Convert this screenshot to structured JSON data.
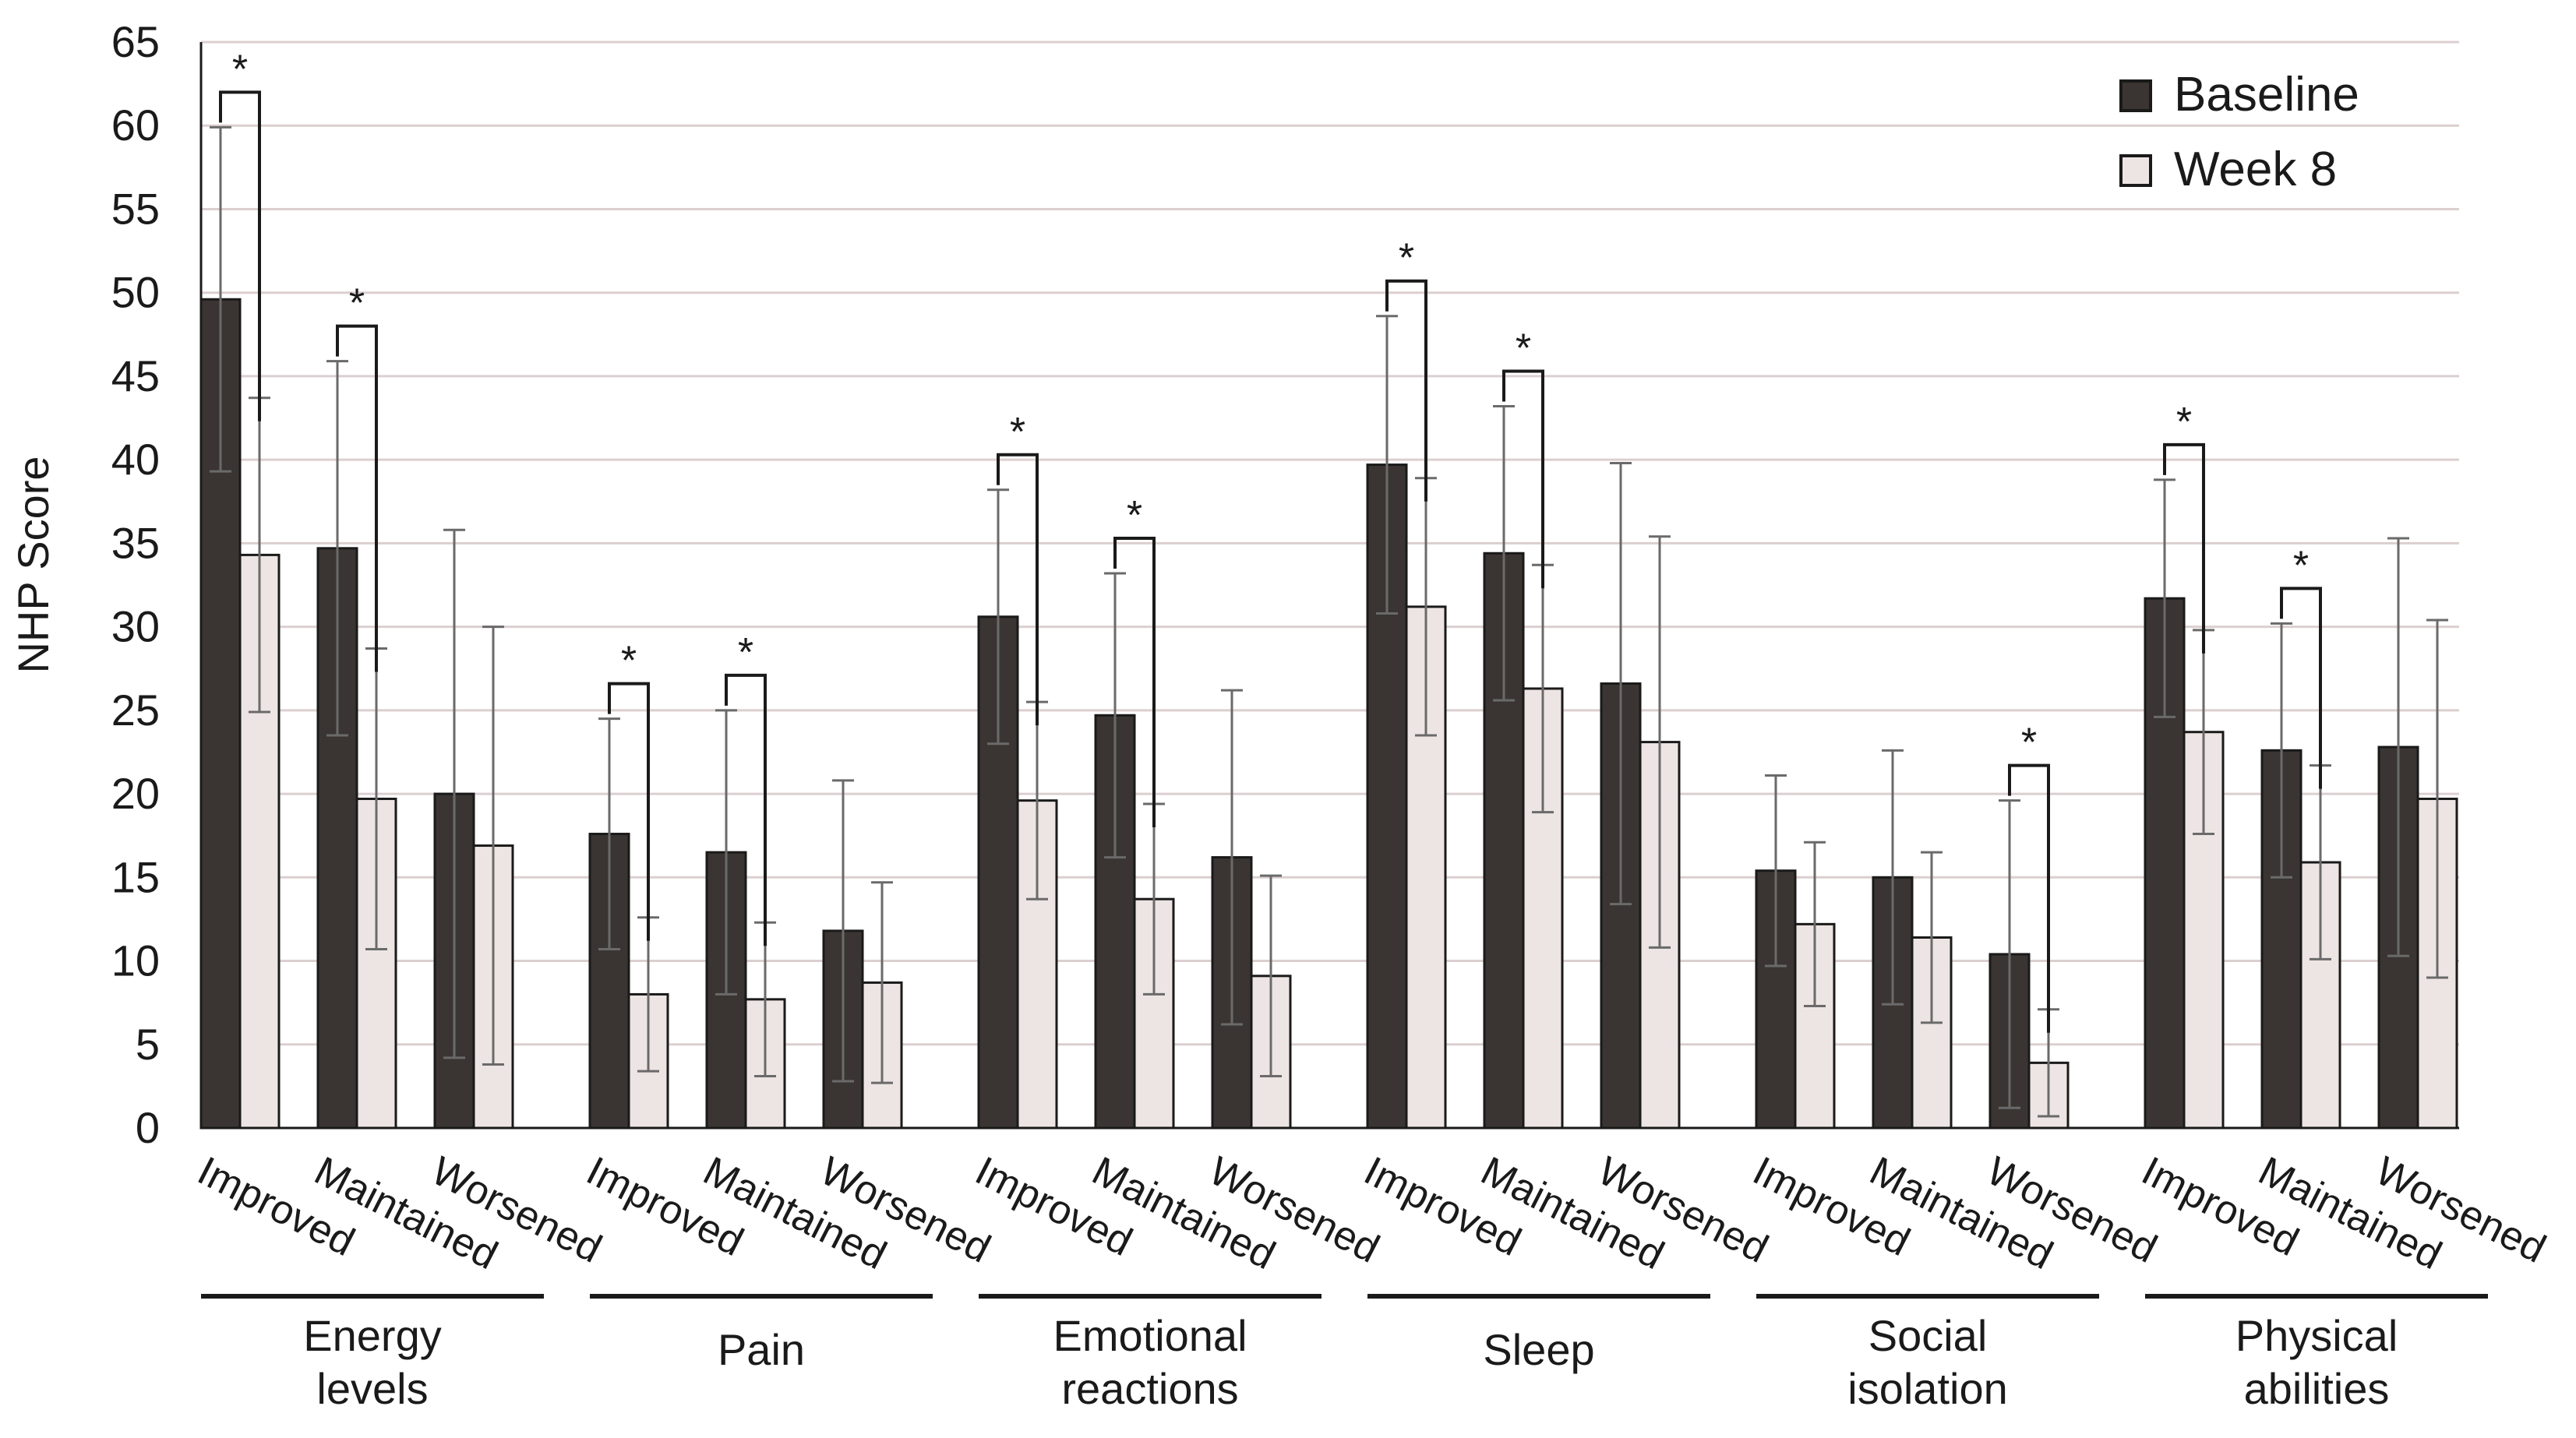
{
  "chart_data": {
    "type": "bar",
    "title": "",
    "xlabel": "",
    "ylabel": "NHP Score",
    "ylim": [
      0,
      65
    ],
    "ytick_step": 5,
    "grid": true,
    "legend_position": "top-right",
    "colors": {
      "Baseline": "#3a3532",
      "Week 8": "#ede5e3",
      "grid": "#dccfd0",
      "error": "#6a6a6a",
      "axis": "#1a1a1a"
    },
    "series": [
      {
        "name": "Baseline"
      },
      {
        "name": "Week 8"
      }
    ],
    "groups": [
      {
        "name": "Energy levels",
        "label_lines": [
          "Energy",
          "levels"
        ],
        "categories": [
          {
            "name": "Improved",
            "baseline": 49.6,
            "baseline_err": 10.3,
            "week8": 34.3,
            "week8_err": 9.4,
            "significant": true
          },
          {
            "name": "Maintained",
            "baseline": 34.7,
            "baseline_err": 11.2,
            "week8": 19.7,
            "week8_err": 9.0,
            "significant": true
          },
          {
            "name": "Worsened",
            "baseline": 20.0,
            "baseline_err": 15.8,
            "week8": 16.9,
            "week8_err": 13.1,
            "significant": false
          }
        ]
      },
      {
        "name": "Pain",
        "label_lines": [
          "Pain"
        ],
        "categories": [
          {
            "name": "Improved",
            "baseline": 17.6,
            "baseline_err": 6.9,
            "week8": 8.0,
            "week8_err": 4.6,
            "significant": true
          },
          {
            "name": "Maintained",
            "baseline": 16.5,
            "baseline_err": 8.5,
            "week8": 7.7,
            "week8_err": 4.6,
            "significant": true
          },
          {
            "name": "Worsened",
            "baseline": 11.8,
            "baseline_err": 9.0,
            "week8": 8.7,
            "week8_err": 6.0,
            "significant": false
          }
        ]
      },
      {
        "name": "Emotional reactions",
        "label_lines": [
          "Emotional",
          "reactions"
        ],
        "categories": [
          {
            "name": "Improved",
            "baseline": 30.6,
            "baseline_err": 7.6,
            "week8": 19.6,
            "week8_err": 5.9,
            "significant": true
          },
          {
            "name": "Maintained",
            "baseline": 24.7,
            "baseline_err": 8.5,
            "week8": 13.7,
            "week8_err": 5.7,
            "significant": true
          },
          {
            "name": "Worsened",
            "baseline": 16.2,
            "baseline_err": 10.0,
            "week8": 9.1,
            "week8_err": 6.0,
            "significant": false
          }
        ]
      },
      {
        "name": "Sleep",
        "label_lines": [
          "Sleep"
        ],
        "categories": [
          {
            "name": "Improved",
            "baseline": 39.7,
            "baseline_err": 8.9,
            "week8": 31.2,
            "week8_err": 7.7,
            "significant": true
          },
          {
            "name": "Maintained",
            "baseline": 34.4,
            "baseline_err": 8.8,
            "week8": 26.3,
            "week8_err": 7.4,
            "significant": true
          },
          {
            "name": "Worsened",
            "baseline": 26.6,
            "baseline_err": 13.2,
            "week8": 23.1,
            "week8_err": 12.3,
            "significant": false
          }
        ]
      },
      {
        "name": "Social isolation",
        "label_lines": [
          "Social",
          "isolation"
        ],
        "categories": [
          {
            "name": "Improved",
            "baseline": 15.4,
            "baseline_err": 5.7,
            "week8": 12.2,
            "week8_err": 4.9,
            "significant": false
          },
          {
            "name": "Maintained",
            "baseline": 15.0,
            "baseline_err": 7.6,
            "week8": 11.4,
            "week8_err": 5.1,
            "significant": false
          },
          {
            "name": "Worsened",
            "baseline": 10.4,
            "baseline_err": 9.2,
            "week8": 3.9,
            "week8_err": 3.2,
            "significant": true
          }
        ]
      },
      {
        "name": "Physical abilities",
        "label_lines": [
          "Physical",
          "abilities"
        ],
        "categories": [
          {
            "name": "Improved",
            "baseline": 31.7,
            "baseline_err": 7.1,
            "week8": 23.7,
            "week8_err": 6.1,
            "significant": true
          },
          {
            "name": "Maintained",
            "baseline": 22.6,
            "baseline_err": 7.6,
            "week8": 15.9,
            "week8_err": 5.8,
            "significant": true
          },
          {
            "name": "Worsened",
            "baseline": 22.8,
            "baseline_err": 12.5,
            "week8": 19.7,
            "week8_err": 10.7,
            "significant": false
          }
        ]
      }
    ],
    "significance_marker": "*"
  }
}
